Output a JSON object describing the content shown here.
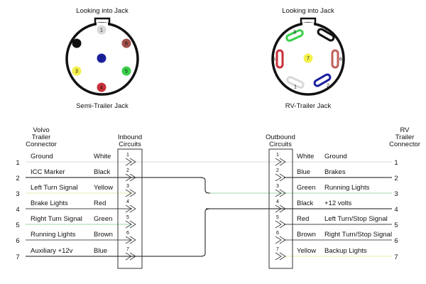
{
  "semi_jack": {
    "heading": "Looking into Jack",
    "caption": "Semi-Trailer Jack",
    "pins": [
      {
        "n": "1",
        "color": "#d8d8d8"
      },
      {
        "n": "2",
        "color": "#111111"
      },
      {
        "n": "3",
        "color": "#f4f04a"
      },
      {
        "n": "4",
        "color": "#c8303a"
      },
      {
        "n": "5",
        "color": "#3ad04a"
      },
      {
        "n": "6",
        "color": "#a0504a"
      },
      {
        "n": "7",
        "color": "#1a20a0"
      }
    ]
  },
  "rv_jack": {
    "heading": "Looking into Jack",
    "caption": "RV-Trailer Jack",
    "pins": [
      {
        "n": "1",
        "color": "#d8d8d8"
      },
      {
        "n": "2",
        "color": "#1a20a0"
      },
      {
        "n": "3",
        "color": "#3ad04a"
      },
      {
        "n": "4",
        "color": "#111111"
      },
      {
        "n": "5",
        "color": "#c8303a"
      },
      {
        "n": "6",
        "color": "#c06058"
      },
      {
        "n": "7",
        "color": "#f4f04a"
      }
    ]
  },
  "left_connector": {
    "title": [
      "Volvo",
      "Trailer",
      "Connector"
    ],
    "box_title": [
      "Inbound",
      "Circuits"
    ],
    "rows": [
      {
        "n": "1",
        "label": "Ground",
        "color_name": "White",
        "wire": "#d8d8d8"
      },
      {
        "n": "2",
        "label": "ICC Marker",
        "color_name": "Black",
        "wire": "#111111"
      },
      {
        "n": "3",
        "label": "Left Turn Signal",
        "color_name": "Yellow",
        "wire": "#e6ecb0"
      },
      {
        "n": "4",
        "label": "Brake Lights",
        "color_name": "Red",
        "wire": "#444444"
      },
      {
        "n": "5",
        "label": "Right Turn Signal",
        "color_name": "Green",
        "wire": "#9fd8a8"
      },
      {
        "n": "6",
        "label": "Running Lights",
        "color_name": "Brown",
        "wire": "#555555"
      },
      {
        "n": "7",
        "label": "Auxiliary +12v",
        "color_name": "Blue",
        "wire": "#111111"
      }
    ]
  },
  "right_connector": {
    "title": [
      "RV",
      "Trailer",
      "Connector"
    ],
    "box_title": [
      "Outbound",
      "Circuits"
    ],
    "rows": [
      {
        "n": "1",
        "label": "Ground",
        "color_name": "White",
        "wire": "#d8d8d8"
      },
      {
        "n": "2",
        "label": "Brakes",
        "color_name": "Blue",
        "wire": "#111111"
      },
      {
        "n": "3",
        "label": "Running Lights",
        "color_name": "Green",
        "wire": "#9fd8a8"
      },
      {
        "n": "4",
        "label": "+12 volts",
        "color_name": "Black",
        "wire": "#111111"
      },
      {
        "n": "5",
        "label": "Left Turn/Stop Signal",
        "color_name": "Red",
        "wire": "#444444"
      },
      {
        "n": "6",
        "label": "Right Turn/Stop Signal",
        "color_name": "Brown",
        "wire": "#555555"
      },
      {
        "n": "7",
        "label": "Backup Lights",
        "color_name": "Yellow",
        "wire": "#e6ecb0"
      }
    ]
  },
  "cross_connections": [
    {
      "from": "2",
      "to": "3"
    },
    {
      "from": "7",
      "to": "4"
    }
  ]
}
